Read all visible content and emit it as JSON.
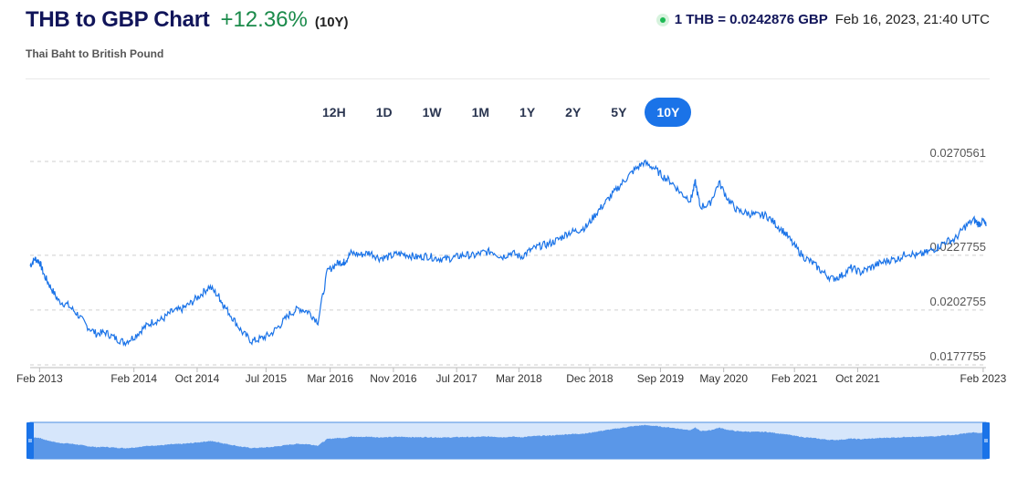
{
  "header": {
    "title": "THB to GBP Chart",
    "change": "+12.36%",
    "period": "(10Y)",
    "subtitle": "Thai Baht to British Pound",
    "rate": "1 THB = 0.0242876 GBP",
    "timestamp": "Feb 16, 2023, 21:40 UTC"
  },
  "tabs": [
    {
      "label": "12H",
      "active": false
    },
    {
      "label": "1D",
      "active": false
    },
    {
      "label": "1W",
      "active": false
    },
    {
      "label": "1M",
      "active": false
    },
    {
      "label": "1Y",
      "active": false
    },
    {
      "label": "2Y",
      "active": false
    },
    {
      "label": "5Y",
      "active": false
    },
    {
      "label": "10Y",
      "active": true
    }
  ],
  "colors": {
    "line": "#1a73e8",
    "area": "#5a97e8",
    "navigator_bg": "#d6e6fb",
    "positive": "#1a8a4a",
    "grid": "#cfcfcf"
  },
  "chart_data": {
    "type": "line",
    "title": "THB to GBP Chart",
    "ylim": [
      0.0177755,
      0.0270561
    ],
    "yticks": [
      0.0270561,
      0.0227755,
      0.0202755,
      0.0177755
    ],
    "ytick_labels": [
      "0.0270561",
      "0.0227755",
      "0.0202755",
      "0.0177755"
    ],
    "xticks": [
      {
        "label": "Feb 2013",
        "t": 2013.1
      },
      {
        "label": "Feb 2014",
        "t": 2014.1
      },
      {
        "label": "Oct 2014",
        "t": 2014.77
      },
      {
        "label": "Jul 2015",
        "t": 2015.5
      },
      {
        "label": "Mar 2016",
        "t": 2016.18
      },
      {
        "label": "Nov 2016",
        "t": 2016.85
      },
      {
        "label": "Jul 2017",
        "t": 2017.52
      },
      {
        "label": "Mar 2018",
        "t": 2018.18
      },
      {
        "label": "Dec 2018",
        "t": 2018.93
      },
      {
        "label": "Sep 2019",
        "t": 2019.68
      },
      {
        "label": "May 2020",
        "t": 2020.35
      },
      {
        "label": "Feb 2021",
        "t": 2021.1
      },
      {
        "label": "Oct 2021",
        "t": 2021.77
      },
      {
        "label": "Feb 2023",
        "t": 2023.1
      }
    ],
    "series": [
      {
        "x": [
          2013.0,
          2013.05,
          2013.1,
          2013.15,
          2013.22,
          2013.3,
          2013.4,
          2013.5,
          2013.6,
          2013.7,
          2013.8,
          2013.9,
          2014.0,
          2014.1,
          2014.2,
          2014.3,
          2014.4,
          2014.5,
          2014.6,
          2014.7,
          2014.8,
          2014.9,
          2015.0,
          2015.05,
          2015.15,
          2015.25,
          2015.35,
          2015.45,
          2015.55,
          2015.65,
          2015.75,
          2015.85,
          2015.95,
          2016.05,
          2016.15,
          2016.25,
          2016.32,
          2016.33,
          2016.4,
          2016.5,
          2016.6,
          2016.7,
          2016.8,
          2016.9,
          2017.0,
          2017.1,
          2017.2,
          2017.3,
          2017.4,
          2017.5,
          2017.6,
          2017.7,
          2017.8,
          2017.9,
          2018.0,
          2018.1,
          2018.2,
          2018.3,
          2018.4,
          2018.5,
          2018.6,
          2018.7,
          2018.8,
          2018.9,
          2019.0,
          2019.1,
          2019.2,
          2019.3,
          2019.4,
          2019.5,
          2019.6,
          2019.7,
          2019.8,
          2019.9,
          2020.0,
          2020.05,
          2020.1,
          2020.2,
          2020.3,
          2020.4,
          2020.5,
          2020.6,
          2020.7,
          2020.8,
          2020.9,
          2021.0,
          2021.1,
          2021.2,
          2021.3,
          2021.4,
          2021.5,
          2021.6,
          2021.7,
          2021.8,
          2021.9,
          2022.0,
          2022.1,
          2022.2,
          2022.3,
          2022.4,
          2022.5,
          2022.6,
          2022.7,
          2022.8,
          2022.9,
          2023.0,
          2023.05,
          2023.1,
          2023.13
        ],
        "y": [
          0.0223,
          0.02262,
          0.02248,
          0.02185,
          0.0213,
          0.0207,
          0.0205,
          0.0201,
          0.01955,
          0.0192,
          0.01925,
          0.019,
          0.0188,
          0.01905,
          0.01945,
          0.01975,
          0.01985,
          0.0202,
          0.0203,
          0.02058,
          0.02095,
          0.02135,
          0.0209,
          0.0205,
          0.0199,
          0.01925,
          0.01885,
          0.01898,
          0.01918,
          0.0196,
          0.0201,
          0.02035,
          0.0202,
          0.01975,
          0.02205,
          0.0224,
          0.02248,
          0.02245,
          0.02288,
          0.0228,
          0.0229,
          0.02265,
          0.0227,
          0.02285,
          0.0228,
          0.02268,
          0.02275,
          0.02265,
          0.0226,
          0.02268,
          0.0228,
          0.02275,
          0.0229,
          0.02295,
          0.0227,
          0.0229,
          0.0227,
          0.023,
          0.0232,
          0.0233,
          0.0235,
          0.0238,
          0.0239,
          0.0241,
          0.0247,
          0.0252,
          0.0257,
          0.0262,
          0.02665,
          0.027,
          0.0268,
          0.0264,
          0.0261,
          0.0256,
          0.0253,
          0.0261,
          0.025,
          0.0251,
          0.0261,
          0.0253,
          0.0248,
          0.0247,
          0.0246,
          0.0246,
          0.0242,
          0.0238,
          0.0232,
          0.0227,
          0.0224,
          0.022,
          0.0217,
          0.02185,
          0.0222,
          0.022,
          0.0222,
          0.0224,
          0.02255,
          0.02262,
          0.0229,
          0.02275,
          0.0229,
          0.0231,
          0.0234,
          0.0235,
          0.02405,
          0.0244,
          0.0242,
          0.02435,
          0.0241
        ]
      }
    ]
  }
}
